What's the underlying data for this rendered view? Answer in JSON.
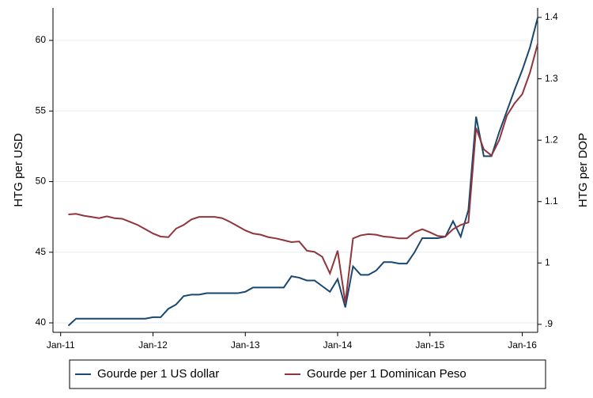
{
  "chart_data": {
    "type": "line",
    "x": [
      "2011-02",
      "2011-03",
      "2011-04",
      "2011-05",
      "2011-06",
      "2011-07",
      "2011-08",
      "2011-09",
      "2011-10",
      "2011-11",
      "2011-12",
      "2012-01",
      "2012-02",
      "2012-03",
      "2012-04",
      "2012-05",
      "2012-06",
      "2012-07",
      "2012-08",
      "2012-09",
      "2012-10",
      "2012-11",
      "2012-12",
      "2013-01",
      "2013-02",
      "2013-03",
      "2013-04",
      "2013-05",
      "2013-06",
      "2013-07",
      "2013-08",
      "2013-09",
      "2013-10",
      "2013-11",
      "2013-12",
      "2014-01",
      "2014-02",
      "2014-03",
      "2014-04",
      "2014-05",
      "2014-06",
      "2014-07",
      "2014-08",
      "2014-09",
      "2014-10",
      "2014-11",
      "2014-12",
      "2015-01",
      "2015-02",
      "2015-03",
      "2015-04",
      "2015-05",
      "2015-06",
      "2015-07",
      "2015-08",
      "2015-09",
      "2015-10",
      "2015-11",
      "2015-12",
      "2016-01",
      "2016-02",
      "2016-03"
    ],
    "xlim": [
      "2010-12",
      "2016-03"
    ],
    "xticks": [
      {
        "value": "2011-01",
        "label": "Jan-11"
      },
      {
        "value": "2012-01",
        "label": "Jan-12"
      },
      {
        "value": "2013-01",
        "label": "Jan-13"
      },
      {
        "value": "2014-01",
        "label": "Jan-14"
      },
      {
        "value": "2015-01",
        "label": "Jan-15"
      },
      {
        "value": "2016-01",
        "label": "Jan-16"
      }
    ],
    "y_label": "HTG per USD",
    "y2_label": "HTG per DOP",
    "ylim": [
      39.33,
      62.3
    ],
    "yticks": [
      40,
      45,
      50,
      55,
      60
    ],
    "y2lim": [
      0.887,
      1.4155
    ],
    "y2ticks": [
      {
        "value": 0.9,
        "label": ".9"
      },
      1,
      1.1,
      1.2,
      1.3,
      1.4
    ],
    "grid": true,
    "legend": "bottom",
    "series": [
      {
        "name": "Gourde per 1 US dollar",
        "color": "#1a476f",
        "values": [
          39.8,
          40.3,
          40.3,
          40.3,
          40.3,
          40.3,
          40.3,
          40.3,
          40.3,
          40.3,
          40.3,
          40.4,
          40.4,
          41.0,
          41.3,
          41.9,
          42.0,
          42.0,
          42.1,
          42.1,
          42.1,
          42.1,
          42.1,
          42.2,
          42.5,
          42.5,
          42.5,
          42.5,
          42.5,
          43.3,
          43.2,
          43.0,
          43.0,
          42.6,
          42.2,
          43.1,
          41.1,
          44.0,
          43.4,
          43.4,
          43.7,
          44.3,
          44.3,
          44.2,
          44.2,
          45.0,
          46.0,
          46.0,
          46.0,
          46.1,
          47.2,
          46.1,
          48.0,
          54.6,
          51.8,
          51.8,
          53.5,
          55.0,
          56.5,
          57.9,
          59.5,
          61.6
        ]
      },
      {
        "name": "Gourde per 1 Dominican Peso",
        "color": "#90353b",
        "axis": "y2",
        "values": [
          1.079,
          1.08,
          1.077,
          1.075,
          1.073,
          1.076,
          1.073,
          1.072,
          1.067,
          1.062,
          1.055,
          1.048,
          1.043,
          1.042,
          1.056,
          1.062,
          1.071,
          1.075,
          1.075,
          1.075,
          1.073,
          1.067,
          1.06,
          1.053,
          1.048,
          1.046,
          1.042,
          1.04,
          1.037,
          1.034,
          1.035,
          1.02,
          1.018,
          1.01,
          0.983,
          1.02,
          0.935,
          1.04,
          1.045,
          1.047,
          1.046,
          1.043,
          1.042,
          1.04,
          1.04,
          1.05,
          1.055,
          1.05,
          1.044,
          1.043,
          1.055,
          1.062,
          1.066,
          1.22,
          1.185,
          1.175,
          1.2,
          1.24,
          1.26,
          1.275,
          1.31,
          1.357
        ]
      }
    ]
  }
}
